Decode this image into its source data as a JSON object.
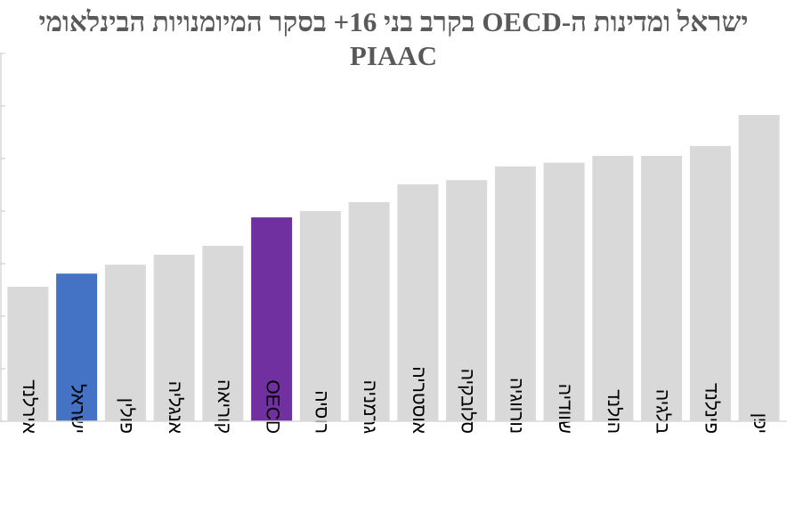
{
  "chart_data": {
    "type": "bar",
    "title": "ישראל ומדינות ה-OECD בקרב בני 16+ בסקר המיומנויות הבינלאומי PIAAC",
    "categories": [
      "אירלנד",
      "ישראל",
      "פולין",
      "אנגליה",
      "קוריאה",
      "OECD",
      "רוסיה",
      "גרמניה",
      "אוסטריה",
      "סלובקיה",
      "נורווגיה",
      "שוודיה",
      "הולנד",
      "בלגיה",
      "פינלנד",
      "יפן"
    ],
    "values": [
      2.56,
      2.81,
      2.98,
      3.17,
      3.34,
      3.88,
      4.0,
      4.17,
      4.51,
      4.59,
      4.85,
      4.92,
      5.05,
      5.05,
      5.24,
      5.83
    ],
    "colors": [
      "#d9d9d9",
      "#4472c4",
      "#d9d9d9",
      "#d9d9d9",
      "#d9d9d9",
      "#7030a0",
      "#d9d9d9",
      "#d9d9d9",
      "#d9d9d9",
      "#d9d9d9",
      "#d9d9d9",
      "#d9d9d9",
      "#d9d9d9",
      "#d9d9d9",
      "#d9d9d9",
      "#d9d9d9"
    ],
    "ylim": [
      0,
      7
    ],
    "yticks": [
      0,
      1,
      2,
      3,
      4,
      5,
      6,
      7
    ]
  }
}
